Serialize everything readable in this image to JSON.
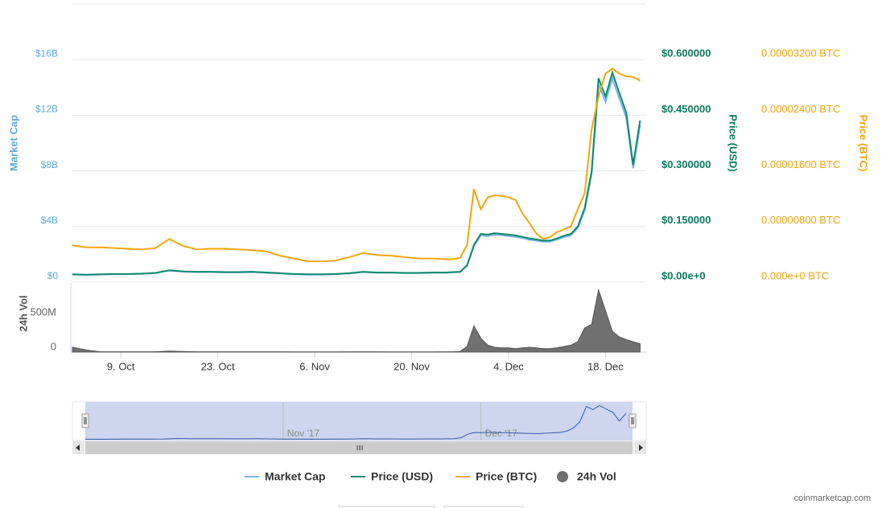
{
  "chart_data": {
    "type": "line",
    "x": [
      "2017-10-02",
      "2017-10-04",
      "2017-10-06",
      "2017-10-08",
      "2017-10-10",
      "2017-10-12",
      "2017-10-14",
      "2017-10-16",
      "2017-10-18",
      "2017-10-20",
      "2017-10-22",
      "2017-10-24",
      "2017-10-26",
      "2017-10-28",
      "2017-10-30",
      "2017-11-01",
      "2017-11-03",
      "2017-11-05",
      "2017-11-07",
      "2017-11-09",
      "2017-11-11",
      "2017-11-13",
      "2017-11-15",
      "2017-11-17",
      "2017-11-19",
      "2017-11-21",
      "2017-11-23",
      "2017-11-25",
      "2017-11-26",
      "2017-11-27",
      "2017-11-28",
      "2017-11-29",
      "2017-11-30",
      "2017-12-01",
      "2017-12-02",
      "2017-12-03",
      "2017-12-04",
      "2017-12-05",
      "2017-12-06",
      "2017-12-07",
      "2017-12-08",
      "2017-12-09",
      "2017-12-10",
      "2017-12-11",
      "2017-12-12",
      "2017-12-13",
      "2017-12-14",
      "2017-12-15",
      "2017-12-16",
      "2017-12-17",
      "2017-12-18",
      "2017-12-19",
      "2017-12-20",
      "2017-12-21",
      "2017-12-22",
      "2017-12-23"
    ],
    "xlim": [
      "2017-10-02",
      "2017-12-24"
    ],
    "xticks": [
      {
        "value": "2017-10-09",
        "label": "9. Oct"
      },
      {
        "value": "2017-10-23",
        "label": "23. Oct"
      },
      {
        "value": "2017-11-06",
        "label": "6. Nov"
      },
      {
        "value": "2017-11-20",
        "label": "20. Nov"
      },
      {
        "value": "2017-12-04",
        "label": "4. Dec"
      },
      {
        "value": "2017-12-18",
        "label": "18. Dec"
      }
    ],
    "series": [
      {
        "name": "Market Cap",
        "color": "#7cb5ec",
        "axis": "y",
        "values": [
          544000000.0,
          518000000.0,
          544000000.0,
          570000000.0,
          570000000.0,
          596000000.0,
          648000000.0,
          829000000.0,
          751000000.0,
          725000000.0,
          725000000.0,
          699000000.0,
          699000000.0,
          725000000.0,
          673000000.0,
          622000000.0,
          570000000.0,
          544000000.0,
          544000000.0,
          570000000.0,
          622000000.0,
          725000000.0,
          673000000.0,
          673000000.0,
          648000000.0,
          648000000.0,
          673000000.0,
          673000000.0,
          699000000.0,
          725000000.0,
          1166000000.0,
          2590000000.0,
          3367000000.0,
          3315000000.0,
          3419000000.0,
          3367000000.0,
          3315000000.0,
          3263000000.0,
          3160000000.0,
          3056000000.0,
          2979000000.0,
          2901000000.0,
          2901000000.0,
          3056000000.0,
          3238000000.0,
          3367000000.0,
          3885000000.0,
          5180000000.0,
          7770000000.0,
          14245000000.0,
          12950000000.0,
          14634000000.0,
          13209000000.0,
          11836000000.0,
          8184000000.0,
          11292000000.0
        ]
      },
      {
        "name": "Price (USD)",
        "color": "#0c8a6b",
        "axis": "y2",
        "values": [
          0.021,
          0.02,
          0.021,
          0.022,
          0.022,
          0.023,
          0.025,
          0.032,
          0.029,
          0.028,
          0.028,
          0.027,
          0.027,
          0.028,
          0.026,
          0.024,
          0.022,
          0.021,
          0.021,
          0.022,
          0.024,
          0.028,
          0.026,
          0.026,
          0.025,
          0.025,
          0.026,
          0.026,
          0.027,
          0.028,
          0.045,
          0.1,
          0.13,
          0.128,
          0.132,
          0.13,
          0.128,
          0.126,
          0.122,
          0.118,
          0.115,
          0.112,
          0.112,
          0.118,
          0.125,
          0.13,
          0.15,
          0.2,
          0.3,
          0.55,
          0.5,
          0.565,
          0.51,
          0.457,
          0.316,
          0.436
        ]
      },
      {
        "name": "Price (BTC)",
        "color": "#f2a60c",
        "axis": "y3",
        "values": [
          5.3e-06,
          5e-06,
          5e-06,
          4.9e-06,
          4.8e-06,
          4.7e-06,
          4.9e-06,
          6.2e-06,
          5.2e-06,
          4.7e-06,
          4.8e-06,
          4.8e-06,
          4.7e-06,
          4.6e-06,
          4.4e-06,
          3.8e-06,
          3.4e-06,
          3e-06,
          3e-06,
          3.1e-06,
          3.6e-06,
          4.2e-06,
          3.9e-06,
          3.8e-06,
          3.6e-06,
          3.4e-06,
          3.4e-06,
          3.3e-06,
          3.3e-06,
          3.5e-06,
          5.3e-06,
          1.34e-05,
          1.05e-05,
          1.22e-05,
          1.25e-05,
          1.24e-05,
          1.22e-05,
          1.18e-05,
          9.9e-06,
          8.5e-06,
          7e-06,
          6.2e-06,
          6.5e-06,
          7.2e-06,
          7.6e-06,
          8e-06,
          1.05e-05,
          1.28e-05,
          2.2e-05,
          2.67e-05,
          3e-05,
          3.07e-05,
          3e-05,
          2.96e-05,
          2.95e-05,
          2.9e-05
        ]
      },
      {
        "name": "24h Vol",
        "color": "#707070",
        "axis": "vol",
        "type": "area",
        "values": [
          70000000.0,
          30000000.0,
          5000000.0,
          5000000.0,
          5000000.0,
          5000000.0,
          5000000.0,
          15000000.0,
          8000000.0,
          5000000.0,
          5000000.0,
          5000000.0,
          5000000.0,
          5000000.0,
          5000000.0,
          5000000.0,
          4000000.0,
          4000000.0,
          4000000.0,
          4000000.0,
          5000000.0,
          5000000.0,
          5000000.0,
          4000000.0,
          4000000.0,
          4000000.0,
          4000000.0,
          5000000.0,
          5000000.0,
          10000000.0,
          80000000.0,
          380000000.0,
          200000000.0,
          100000000.0,
          70000000.0,
          60000000.0,
          60000000.0,
          50000000.0,
          60000000.0,
          70000000.0,
          60000000.0,
          50000000.0,
          50000000.0,
          60000000.0,
          80000000.0,
          100000000.0,
          150000000.0,
          350000000.0,
          400000000.0,
          900000000.0,
          600000000.0,
          300000000.0,
          220000000.0,
          180000000.0,
          150000000.0,
          120000000.0
        ]
      }
    ],
    "ylabel": "Market Cap",
    "ylim": [
      0,
      20000000000.0
    ],
    "yticks": [
      {
        "value": 0,
        "label": "$0"
      },
      {
        "value": 4000000000.0,
        "label": "$4B"
      },
      {
        "value": 8000000000.0,
        "label": "$8B"
      },
      {
        "value": 12000000000.0,
        "label": "$12B"
      },
      {
        "value": 16000000000.0,
        "label": "$16B"
      }
    ],
    "y2label": "Price (USD)",
    "y2lim": [
      0,
      0.75
    ],
    "y2ticks": [
      {
        "value": 0,
        "label": "$0.00e+0"
      },
      {
        "value": 0.15,
        "label": "$0.150000"
      },
      {
        "value": 0.3,
        "label": "$0.300000"
      },
      {
        "value": 0.45,
        "label": "$0.450000"
      },
      {
        "value": 0.6,
        "label": "$0.600000"
      }
    ],
    "y3label": "Price (BTC)",
    "y3lim": [
      0,
      4e-05
    ],
    "y3ticks": [
      {
        "value": 0,
        "label": "0.000e+0 BTC"
      },
      {
        "value": 8e-06,
        "label": "0.00000800 BTC"
      },
      {
        "value": 1.6e-05,
        "label": "0.00001600 BTC"
      },
      {
        "value": 2.4e-05,
        "label": "0.00002400 BTC"
      },
      {
        "value": 3.2e-05,
        "label": "0.00003200 BTC"
      }
    ],
    "vol_ylabel": "24h Vol",
    "vol_ylim": [
      0,
      1000000000.0
    ],
    "vol_yticks": [
      0,
      {
        "value": 500000000.0,
        "label": "500M"
      }
    ],
    "grid": true,
    "navigator": {
      "ylim": [
        0,
        15500000000.0
      ],
      "xticks": [
        {
          "value": "2017-11-01",
          "label": "Nov '17"
        },
        {
          "value": "2017-12-01",
          "label": "Dec '17"
        }
      ]
    }
  },
  "credit": "coinmarketcap.com"
}
